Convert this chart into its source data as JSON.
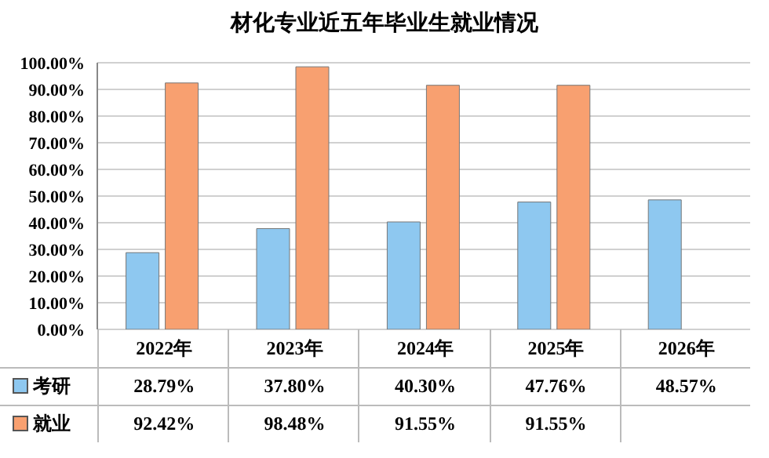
{
  "chart_data": {
    "type": "bar",
    "title": "材化专业近五年毕业生就业情况",
    "categories": [
      "2022年",
      "2023年",
      "2024年",
      "2025年",
      "2026年"
    ],
    "series": [
      {
        "name": "考研",
        "color": "#8ec8f0",
        "values": [
          28.79,
          37.8,
          40.3,
          47.76,
          48.57
        ],
        "value_labels": [
          "28.79%",
          "37.80%",
          "40.30%",
          "47.76%",
          "48.57%"
        ]
      },
      {
        "name": "就业",
        "color": "#f8a070",
        "values": [
          92.42,
          98.48,
          91.55,
          91.55,
          null
        ],
        "value_labels": [
          "92.42%",
          "98.48%",
          "91.55%",
          "91.55%",
          null
        ]
      }
    ],
    "ylim": [
      0,
      100
    ],
    "yticks": [
      {
        "value": 0,
        "label": "0.00%"
      },
      {
        "value": 10,
        "label": "10.00%"
      },
      {
        "value": 20,
        "label": "20.00%"
      },
      {
        "value": 30,
        "label": "30.00%"
      },
      {
        "value": 40,
        "label": "40.00%"
      },
      {
        "value": 50,
        "label": "50.00%"
      },
      {
        "value": 60,
        "label": "60.00%"
      },
      {
        "value": 70,
        "label": "70.00%"
      },
      {
        "value": 80,
        "label": "80.00%"
      },
      {
        "value": 90,
        "label": "90.00%"
      },
      {
        "value": 100,
        "label": "100.00%"
      }
    ],
    "grid": "y",
    "legend": "bottom"
  }
}
